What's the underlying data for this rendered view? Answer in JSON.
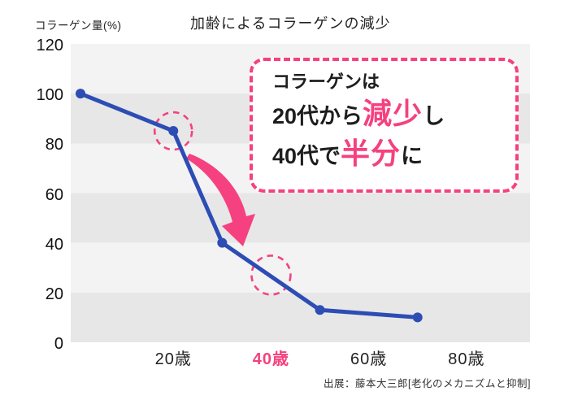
{
  "callout": {
    "line1": "コラーゲンは",
    "line2_pre": "20代から",
    "line2_em": "減少",
    "line2_post": "し",
    "line3_pre": "40代で",
    "line3_em": "半分",
    "line3_post": "に"
  },
  "source": "出展：藤本大三郎[老化のメカニズムと抑制]",
  "colors": {
    "line_blue": "#2D4DB5",
    "accent_pink": "#F5417F",
    "stripe_light": "#f3f3f3",
    "stripe_dark": "#e7e7e7"
  },
  "chart_data": {
    "type": "line",
    "title": "加齢によるコラーゲンの減少",
    "y_axis_title": "コラーゲン量(%)",
    "x_unit": "歳 (age, years)",
    "x": [
      1,
      20,
      30,
      50,
      70
    ],
    "values": [
      100,
      85,
      40,
      13,
      10
    ],
    "series_name": "コラーゲン量",
    "y_ticks": [
      120,
      100,
      80,
      60,
      40,
      20,
      0
    ],
    "x_ticks": [
      {
        "label": "20歳",
        "age": 20,
        "highlight": false
      },
      {
        "label": "40歳",
        "age": 40,
        "highlight": true
      },
      {
        "label": "60歳",
        "age": 60,
        "highlight": false
      },
      {
        "label": "80歳",
        "age": 80,
        "highlight": false
      }
    ],
    "x_range": [
      -1,
      93
    ],
    "y_range": [
      0,
      120
    ],
    "grid": "alternating horizontal bands every 20%",
    "legend": "none",
    "highlights": [
      {
        "age": 20,
        "value": 85,
        "r": 23
      },
      {
        "age": 40,
        "value": 27,
        "r": 24
      }
    ]
  }
}
